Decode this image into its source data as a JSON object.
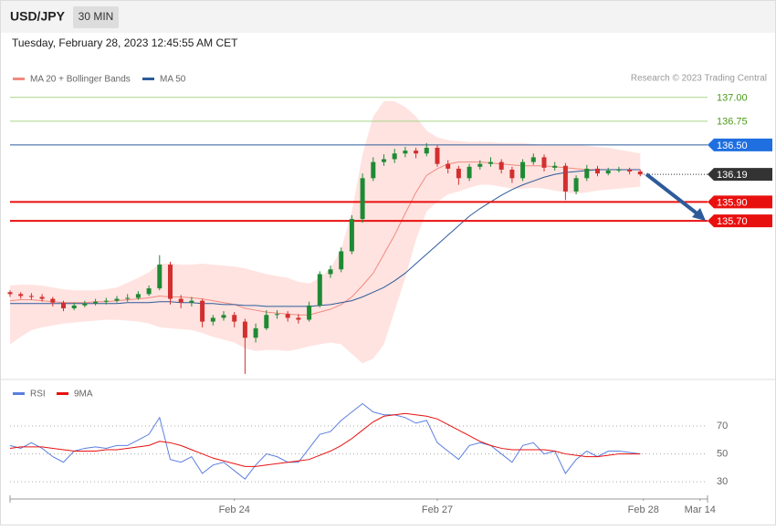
{
  "header": {
    "symbol": "USD/JPY",
    "interval": "30 MIN",
    "timestamp": "Tuesday, February 28, 2023 12:45:55 AM CET",
    "credit": "Research © 2023 Trading Central"
  },
  "chart_data": [
    {
      "type": "candlestick",
      "up_color": "#1e8a34",
      "down_color": "#d32f2f",
      "xlim": [
        0,
        65.3
      ],
      "ylim": [
        134.05,
        137.68
      ],
      "open": [
        134.95,
        134.93,
        134.91,
        134.9,
        134.88,
        134.84,
        134.78,
        134.81,
        134.83,
        134.85,
        134.86,
        134.88,
        134.89,
        134.93,
        134.99,
        135.24,
        134.88,
        134.84,
        134.86,
        134.64,
        134.68,
        134.71,
        134.64,
        134.47,
        134.57,
        134.71,
        134.72,
        134.68,
        134.66,
        134.81,
        135.14,
        135.19,
        135.38,
        135.72,
        136.15,
        136.32,
        136.35,
        136.41,
        136.44,
        136.41,
        136.47,
        136.3,
        136.25,
        136.15,
        136.27,
        136.3,
        136.32,
        136.24,
        136.15,
        136.32,
        136.37,
        136.26,
        136.28,
        136.01,
        136.15,
        136.25,
        136.2,
        136.23,
        136.24,
        136.22
      ],
      "high": [
        134.97,
        134.95,
        134.94,
        134.93,
        134.9,
        134.86,
        134.84,
        134.86,
        134.88,
        134.89,
        134.91,
        134.93,
        134.96,
        135.02,
        135.34,
        135.27,
        134.92,
        134.9,
        134.88,
        134.71,
        134.75,
        134.74,
        134.67,
        134.62,
        134.76,
        134.76,
        134.75,
        134.72,
        134.85,
        135.17,
        135.23,
        135.42,
        135.76,
        136.2,
        136.37,
        136.4,
        136.46,
        136.48,
        136.47,
        136.52,
        136.5,
        136.34,
        136.28,
        136.3,
        136.34,
        136.37,
        136.35,
        136.27,
        136.35,
        136.41,
        136.4,
        136.32,
        136.31,
        136.18,
        136.29,
        136.28,
        136.26,
        136.27,
        136.26,
        136.24
      ],
      "low": [
        134.9,
        134.88,
        134.87,
        134.85,
        134.8,
        134.75,
        134.76,
        134.79,
        134.81,
        134.82,
        134.84,
        134.85,
        134.87,
        134.91,
        134.97,
        134.82,
        134.78,
        134.8,
        134.58,
        134.6,
        134.65,
        134.58,
        134.09,
        134.42,
        134.55,
        134.67,
        134.64,
        134.62,
        134.64,
        134.79,
        135.1,
        135.16,
        135.35,
        135.68,
        136.12,
        136.28,
        136.31,
        136.37,
        136.36,
        136.38,
        136.27,
        136.2,
        136.08,
        136.12,
        136.24,
        136.27,
        136.2,
        136.1,
        136.12,
        136.29,
        136.22,
        136.23,
        135.92,
        135.98,
        136.12,
        136.17,
        136.18,
        136.21,
        136.19,
        136.17
      ],
      "close": [
        134.93,
        134.91,
        134.9,
        134.88,
        134.84,
        134.78,
        134.81,
        134.83,
        134.85,
        134.86,
        134.88,
        134.89,
        134.93,
        134.99,
        135.24,
        134.88,
        134.84,
        134.86,
        134.64,
        134.68,
        134.71,
        134.64,
        134.47,
        134.57,
        134.71,
        134.72,
        134.68,
        134.66,
        134.81,
        135.14,
        135.19,
        135.38,
        135.72,
        136.15,
        136.32,
        136.35,
        136.41,
        136.44,
        136.41,
        136.47,
        136.3,
        136.25,
        136.15,
        136.27,
        136.3,
        136.32,
        136.24,
        136.15,
        136.32,
        136.37,
        136.26,
        136.28,
        136.01,
        136.15,
        136.25,
        136.2,
        136.23,
        136.24,
        136.22,
        136.19
      ],
      "overlays": [
        {
          "name": "MA 20 + Bollinger Bands",
          "color": "#f08a80",
          "band_color": "#ffd9d6",
          "values": [
            134.86,
            134.87,
            134.87,
            134.86,
            134.85,
            134.84,
            134.84,
            134.84,
            134.85,
            134.85,
            134.86,
            134.87,
            134.88,
            134.89,
            134.91,
            134.9,
            134.9,
            134.89,
            134.88,
            134.86,
            134.84,
            134.82,
            134.78,
            134.76,
            134.74,
            134.73,
            134.72,
            134.71,
            134.71,
            134.74,
            134.77,
            134.82,
            134.9,
            135.02,
            135.15,
            135.35,
            135.55,
            135.78,
            136.0,
            136.18,
            136.25,
            136.3,
            136.32,
            136.32,
            136.32,
            136.31,
            136.3,
            136.29,
            136.28,
            136.28,
            136.28,
            136.27,
            136.26,
            136.25,
            136.24,
            136.24,
            136.24,
            136.24,
            136.24,
            136.24
          ],
          "upper": [
            135.02,
            135.03,
            135.03,
            135.02,
            135.0,
            134.98,
            134.97,
            134.97,
            134.97,
            134.98,
            135.0,
            135.05,
            135.1,
            135.16,
            135.25,
            135.25,
            135.24,
            135.24,
            135.25,
            135.24,
            135.23,
            135.22,
            135.2,
            135.17,
            135.14,
            135.12,
            135.1,
            135.06,
            135.04,
            135.1,
            135.2,
            135.4,
            135.8,
            136.4,
            136.8,
            136.96,
            136.96,
            136.9,
            136.8,
            136.65,
            136.58,
            136.55,
            136.54,
            136.53,
            136.53,
            136.53,
            136.52,
            136.52,
            136.52,
            136.51,
            136.5,
            136.5,
            136.5,
            136.5,
            136.49,
            136.48,
            136.47,
            136.45,
            136.43,
            136.41
          ],
          "lower": [
            134.4,
            134.48,
            134.55,
            134.58,
            134.6,
            134.62,
            134.63,
            134.64,
            134.65,
            134.66,
            134.66,
            134.65,
            134.64,
            134.62,
            134.58,
            134.57,
            134.56,
            134.55,
            134.52,
            134.48,
            134.45,
            134.42,
            134.36,
            134.33,
            134.34,
            134.34,
            134.33,
            134.35,
            134.38,
            134.4,
            134.42,
            134.4,
            134.3,
            134.2,
            134.25,
            134.4,
            134.75,
            135.1,
            135.5,
            135.8,
            135.9,
            135.98,
            136.01,
            136.05,
            136.08,
            136.08,
            136.06,
            136.04,
            136.04,
            136.05,
            136.04,
            136.02,
            136.0,
            135.99,
            136.0,
            136.02,
            136.03,
            136.04,
            136.05,
            136.06
          ]
        },
        {
          "name": "MA 50",
          "color": "#2d5b9a",
          "values": [
            134.83,
            134.83,
            134.83,
            134.83,
            134.83,
            134.83,
            134.83,
            134.83,
            134.83,
            134.83,
            134.83,
            134.84,
            134.84,
            134.84,
            134.85,
            134.85,
            134.84,
            134.84,
            134.83,
            134.83,
            134.82,
            134.82,
            134.81,
            134.81,
            134.8,
            134.8,
            134.8,
            134.8,
            134.8,
            134.81,
            134.82,
            134.84,
            134.86,
            134.9,
            134.95,
            135.0,
            135.07,
            135.15,
            135.25,
            135.35,
            135.45,
            135.55,
            135.65,
            135.75,
            135.83,
            135.9,
            135.97,
            136.03,
            136.08,
            136.12,
            136.16,
            136.19,
            136.21,
            136.22,
            136.23,
            136.24,
            136.24,
            136.24,
            136.24,
            136.24
          ]
        }
      ],
      "levels": [
        {
          "value": 137.0,
          "label": "137.00",
          "color": "#4c9a1a",
          "line_color": "#a9d48a",
          "tag": false
        },
        {
          "value": 136.75,
          "label": "136.75",
          "color": "#4c9a1a",
          "line_color": "#a9d48a",
          "tag": false
        },
        {
          "value": 136.5,
          "label": "136.50",
          "color": "#1f6fe0",
          "line_color": "#2d5b9a",
          "tag": true
        },
        {
          "value": 136.19,
          "label": "136.19",
          "color": "#333333",
          "line_color": "#333333",
          "tag": true,
          "style": "dotted"
        },
        {
          "value": 135.9,
          "label": "135.90",
          "color": "#e8100f",
          "line_color": "#e8100f",
          "tag": true
        },
        {
          "value": 135.7,
          "label": "135.70",
          "color": "#e8100f",
          "line_color": "#e8100f",
          "tag": true
        }
      ]
    },
    {
      "type": "line",
      "xlim": [
        0,
        65.3
      ],
      "ylim": [
        19,
        102
      ],
      "yticks": [
        30,
        50,
        70
      ],
      "xticks": [
        {
          "value": 21,
          "label": "Feb 24"
        },
        {
          "value": 40,
          "label": "Feb 27"
        },
        {
          "value": 59.3,
          "label": "Feb 28"
        },
        {
          "value": 64.6,
          "label": "Mar 14"
        }
      ],
      "series": [
        {
          "name": "RSI",
          "color": "#5b7fe0",
          "values": [
            56,
            54,
            58,
            54,
            48,
            44,
            52,
            54,
            55,
            54,
            56,
            56,
            60,
            64,
            76,
            46,
            44,
            48,
            36,
            42,
            44,
            38,
            32,
            42,
            50,
            48,
            44,
            44,
            54,
            64,
            66,
            74,
            80,
            86,
            80,
            78,
            78,
            76,
            72,
            74,
            58,
            52,
            46,
            56,
            58,
            56,
            50,
            44,
            56,
            58,
            50,
            52,
            36,
            46,
            52,
            48,
            52,
            52,
            51,
            50
          ]
        },
        {
          "name": "9MA",
          "color": "#e8100f",
          "values": [
            54,
            55,
            55,
            55,
            54,
            53,
            52,
            52,
            52,
            53,
            53,
            54,
            55,
            56,
            59,
            58,
            56,
            53,
            50,
            47,
            45,
            43,
            41,
            41,
            42,
            43,
            44,
            45,
            46,
            49,
            52,
            56,
            61,
            67,
            73,
            77,
            78,
            79,
            78,
            77,
            75,
            71,
            67,
            63,
            59,
            56,
            54,
            53,
            53,
            53,
            53,
            52,
            50,
            49,
            48,
            48,
            49,
            50,
            50,
            50
          ]
        }
      ]
    }
  ]
}
